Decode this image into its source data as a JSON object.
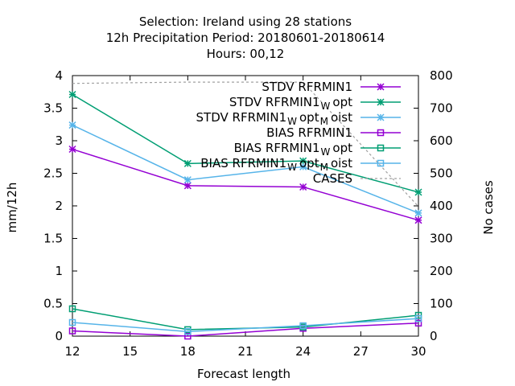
{
  "chart_data": {
    "type": "line",
    "title_lines": [
      "Selection: Ireland using    28 stations",
      "12h Precipitation    Period: 20180601-20180614",
      "Hours:  00,12"
    ],
    "xlabel": "Forecast length",
    "ylabel": "mm/12h",
    "y2label": "No cases",
    "xlim": [
      12,
      30
    ],
    "ylim": [
      0,
      4
    ],
    "y2lim": [
      0,
      800
    ],
    "x_ticks": [
      "12",
      "15",
      "18",
      "21",
      "24",
      "27",
      "30"
    ],
    "y_ticks": [
      "0",
      "0.5",
      "1",
      "1.5",
      "2",
      "2.5",
      "3",
      "3.5",
      "4"
    ],
    "y2_ticks": [
      "0",
      "100",
      "200",
      "300",
      "400",
      "500",
      "600",
      "700",
      "800"
    ],
    "x": [
      12,
      18,
      24,
      30
    ],
    "legend_position": "top-right",
    "series": [
      {
        "name": "STDV RFRMIN1",
        "legend_parts": [
          [
            "STDV RFRMIN1",
            ""
          ]
        ],
        "color": "#9400d3",
        "marker": "star",
        "axis": "y1",
        "values": [
          2.87,
          2.31,
          2.29,
          1.78
        ]
      },
      {
        "name": "STDV RFRMIN1 W opt",
        "legend_parts": [
          [
            "STDV RFRMIN1",
            ""
          ],
          [
            "W",
            "sub"
          ],
          [
            "opt",
            ""
          ]
        ],
        "color": "#009e73",
        "marker": "star",
        "axis": "y1",
        "values": [
          3.71,
          2.65,
          2.69,
          2.21
        ]
      },
      {
        "name": "STDV RFRMIN1 W opt M oist",
        "legend_parts": [
          [
            "STDV RFRMIN1",
            ""
          ],
          [
            "W",
            "sub"
          ],
          [
            "opt",
            ""
          ],
          [
            "M",
            "sub"
          ],
          [
            "oist",
            ""
          ]
        ],
        "color": "#56b4e9",
        "marker": "star",
        "axis": "y1",
        "values": [
          3.24,
          2.4,
          2.6,
          1.89
        ]
      },
      {
        "name": "BIAS RFRMIN1",
        "legend_parts": [
          [
            "BIAS RFRMIN1",
            ""
          ]
        ],
        "color": "#9400d3",
        "marker": "square",
        "axis": "y1",
        "values": [
          0.08,
          0.0,
          0.12,
          0.2
        ]
      },
      {
        "name": "BIAS RFRMIN1 W opt",
        "legend_parts": [
          [
            "BIAS RFRMIN1",
            ""
          ],
          [
            "W",
            "sub"
          ],
          [
            "opt",
            ""
          ]
        ],
        "color": "#009e73",
        "marker": "square",
        "axis": "y1",
        "values": [
          0.42,
          0.1,
          0.14,
          0.32
        ]
      },
      {
        "name": "BIAS RFRMIN1 W opt M oist",
        "legend_parts": [
          [
            "BIAS RFRMIN1",
            ""
          ],
          [
            "W",
            "sub"
          ],
          [
            "opt",
            ""
          ],
          [
            "M",
            "sub"
          ],
          [
            "oist",
            ""
          ]
        ],
        "color": "#56b4e9",
        "marker": "square",
        "axis": "y1",
        "values": [
          0.21,
          0.07,
          0.16,
          0.27
        ]
      },
      {
        "name": "CASES",
        "legend_parts": [
          [
            "CASES",
            ""
          ]
        ],
        "color": "#a0a0a0",
        "marker": "none",
        "dash": "3,3",
        "axis": "y2",
        "values": [
          776,
          780,
          780,
          398
        ]
      }
    ]
  }
}
